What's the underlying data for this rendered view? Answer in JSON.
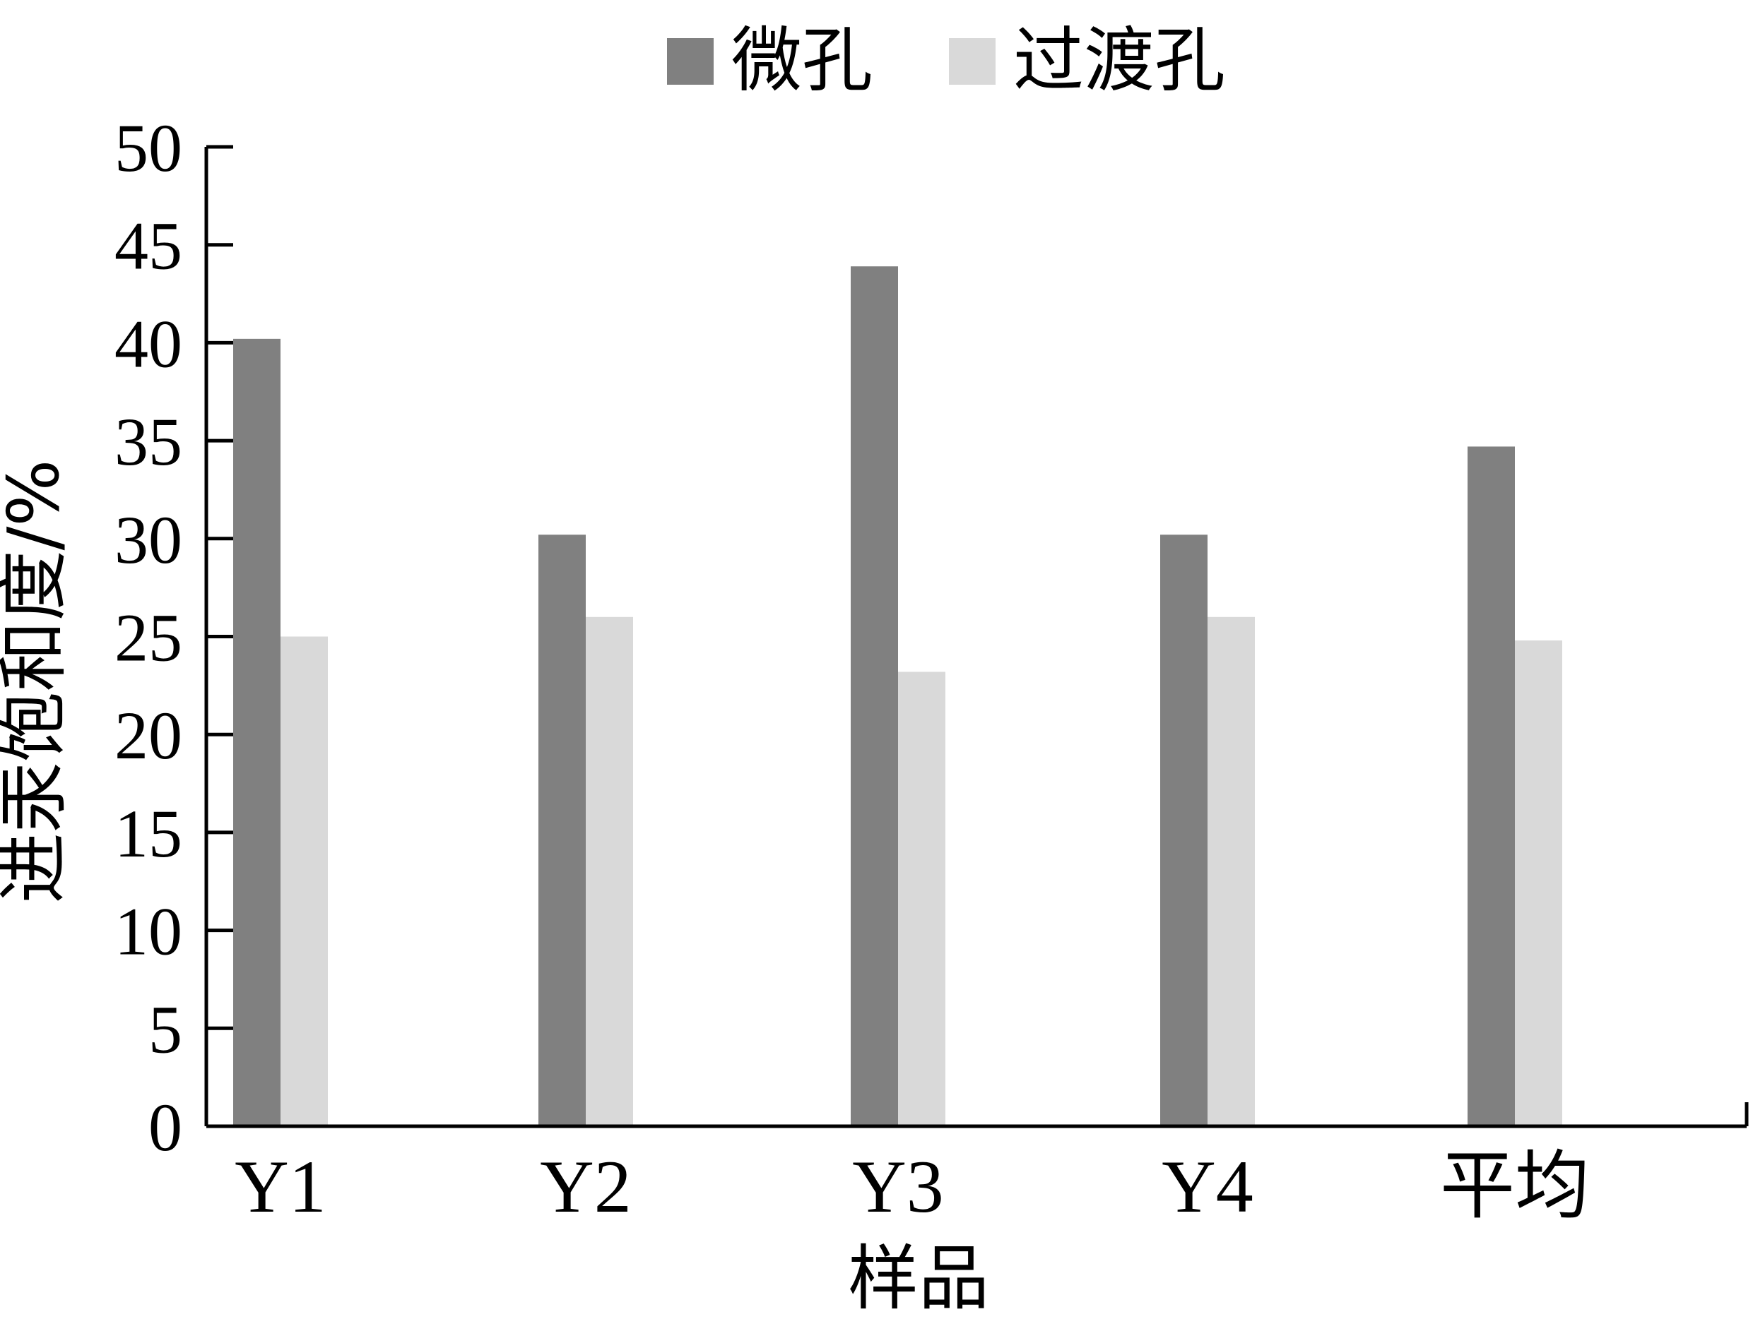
{
  "chart_data": {
    "type": "bar",
    "categories": [
      "Y1",
      "Y2",
      "Y3",
      "Y4",
      "平均"
    ],
    "series": [
      {
        "name": "微孔",
        "color": "#808080",
        "values": [
          40.2,
          30.2,
          43.9,
          30.2,
          34.7
        ]
      },
      {
        "name": "过渡孔",
        "color": "#d9d9d9",
        "values": [
          25.0,
          26.0,
          23.2,
          26.0,
          24.8
        ]
      }
    ],
    "title": "",
    "xlabel": "样品",
    "ylabel": "进汞饱和度/%",
    "ylim": [
      0,
      50
    ],
    "yticks": [
      0,
      5,
      10,
      15,
      20,
      25,
      30,
      35,
      40,
      45,
      50
    ],
    "grid": false,
    "legend": "top-center"
  }
}
